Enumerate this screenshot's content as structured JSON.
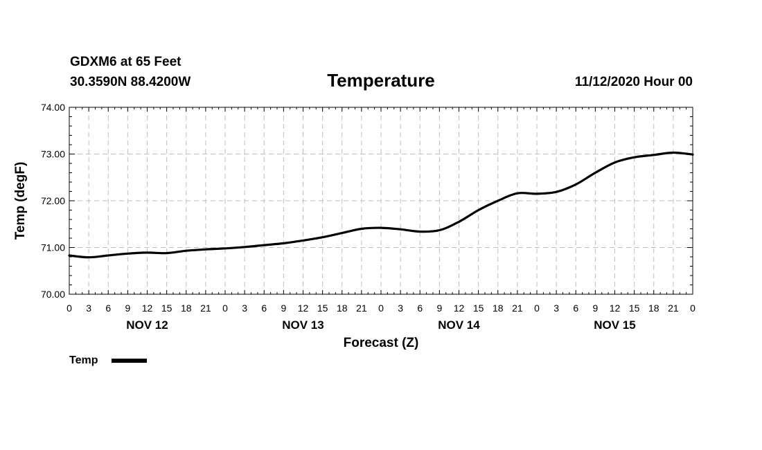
{
  "chart_data": {
    "type": "line",
    "station": "GDXM6 at 65 Feet",
    "location": "30.3590N 88.4200W",
    "title": "Temperature",
    "issued": "11/12/2020 Hour 00",
    "xlabel": "Forecast (Z)",
    "ylabel": "Temp (degF)",
    "ylim": [
      70,
      74
    ],
    "yticks": [
      "70.00",
      "71.00",
      "72.00",
      "73.00",
      "74.00"
    ],
    "xlim_hours": [
      0,
      96
    ],
    "xtick_labels": [
      "0",
      "3",
      "6",
      "9",
      "12",
      "15",
      "18",
      "21",
      "0",
      "3",
      "6",
      "9",
      "12",
      "15",
      "18",
      "21",
      "0",
      "3",
      "6",
      "9",
      "12",
      "15",
      "18",
      "21",
      "0",
      "3",
      "6",
      "9",
      "12",
      "15",
      "18",
      "21",
      "0"
    ],
    "day_labels": [
      {
        "label": "NOV 12",
        "hour": 12
      },
      {
        "label": "NOV 13",
        "hour": 36
      },
      {
        "label": "NOV 14",
        "hour": 60
      },
      {
        "label": "NOV 15",
        "hour": 84
      }
    ],
    "grid": true,
    "legend": {
      "position": "bottom-left",
      "entries": [
        "Temp"
      ]
    },
    "series": [
      {
        "name": "Temp",
        "color": "#000000",
        "x": [
          0,
          3,
          6,
          9,
          12,
          15,
          18,
          21,
          24,
          27,
          30,
          33,
          36,
          39,
          42,
          45,
          48,
          51,
          54,
          57,
          60,
          63,
          66,
          69,
          72,
          75,
          78,
          81,
          84,
          87,
          90,
          93,
          96
        ],
        "values": [
          70.83,
          70.79,
          70.83,
          70.87,
          70.89,
          70.88,
          70.93,
          70.96,
          70.98,
          71.01,
          71.05,
          71.09,
          71.15,
          71.22,
          71.31,
          71.4,
          71.42,
          71.39,
          71.34,
          71.37,
          71.55,
          71.8,
          72.0,
          72.16,
          72.15,
          72.19,
          72.35,
          72.6,
          72.82,
          72.93,
          72.98,
          73.03,
          72.99
        ]
      }
    ]
  }
}
